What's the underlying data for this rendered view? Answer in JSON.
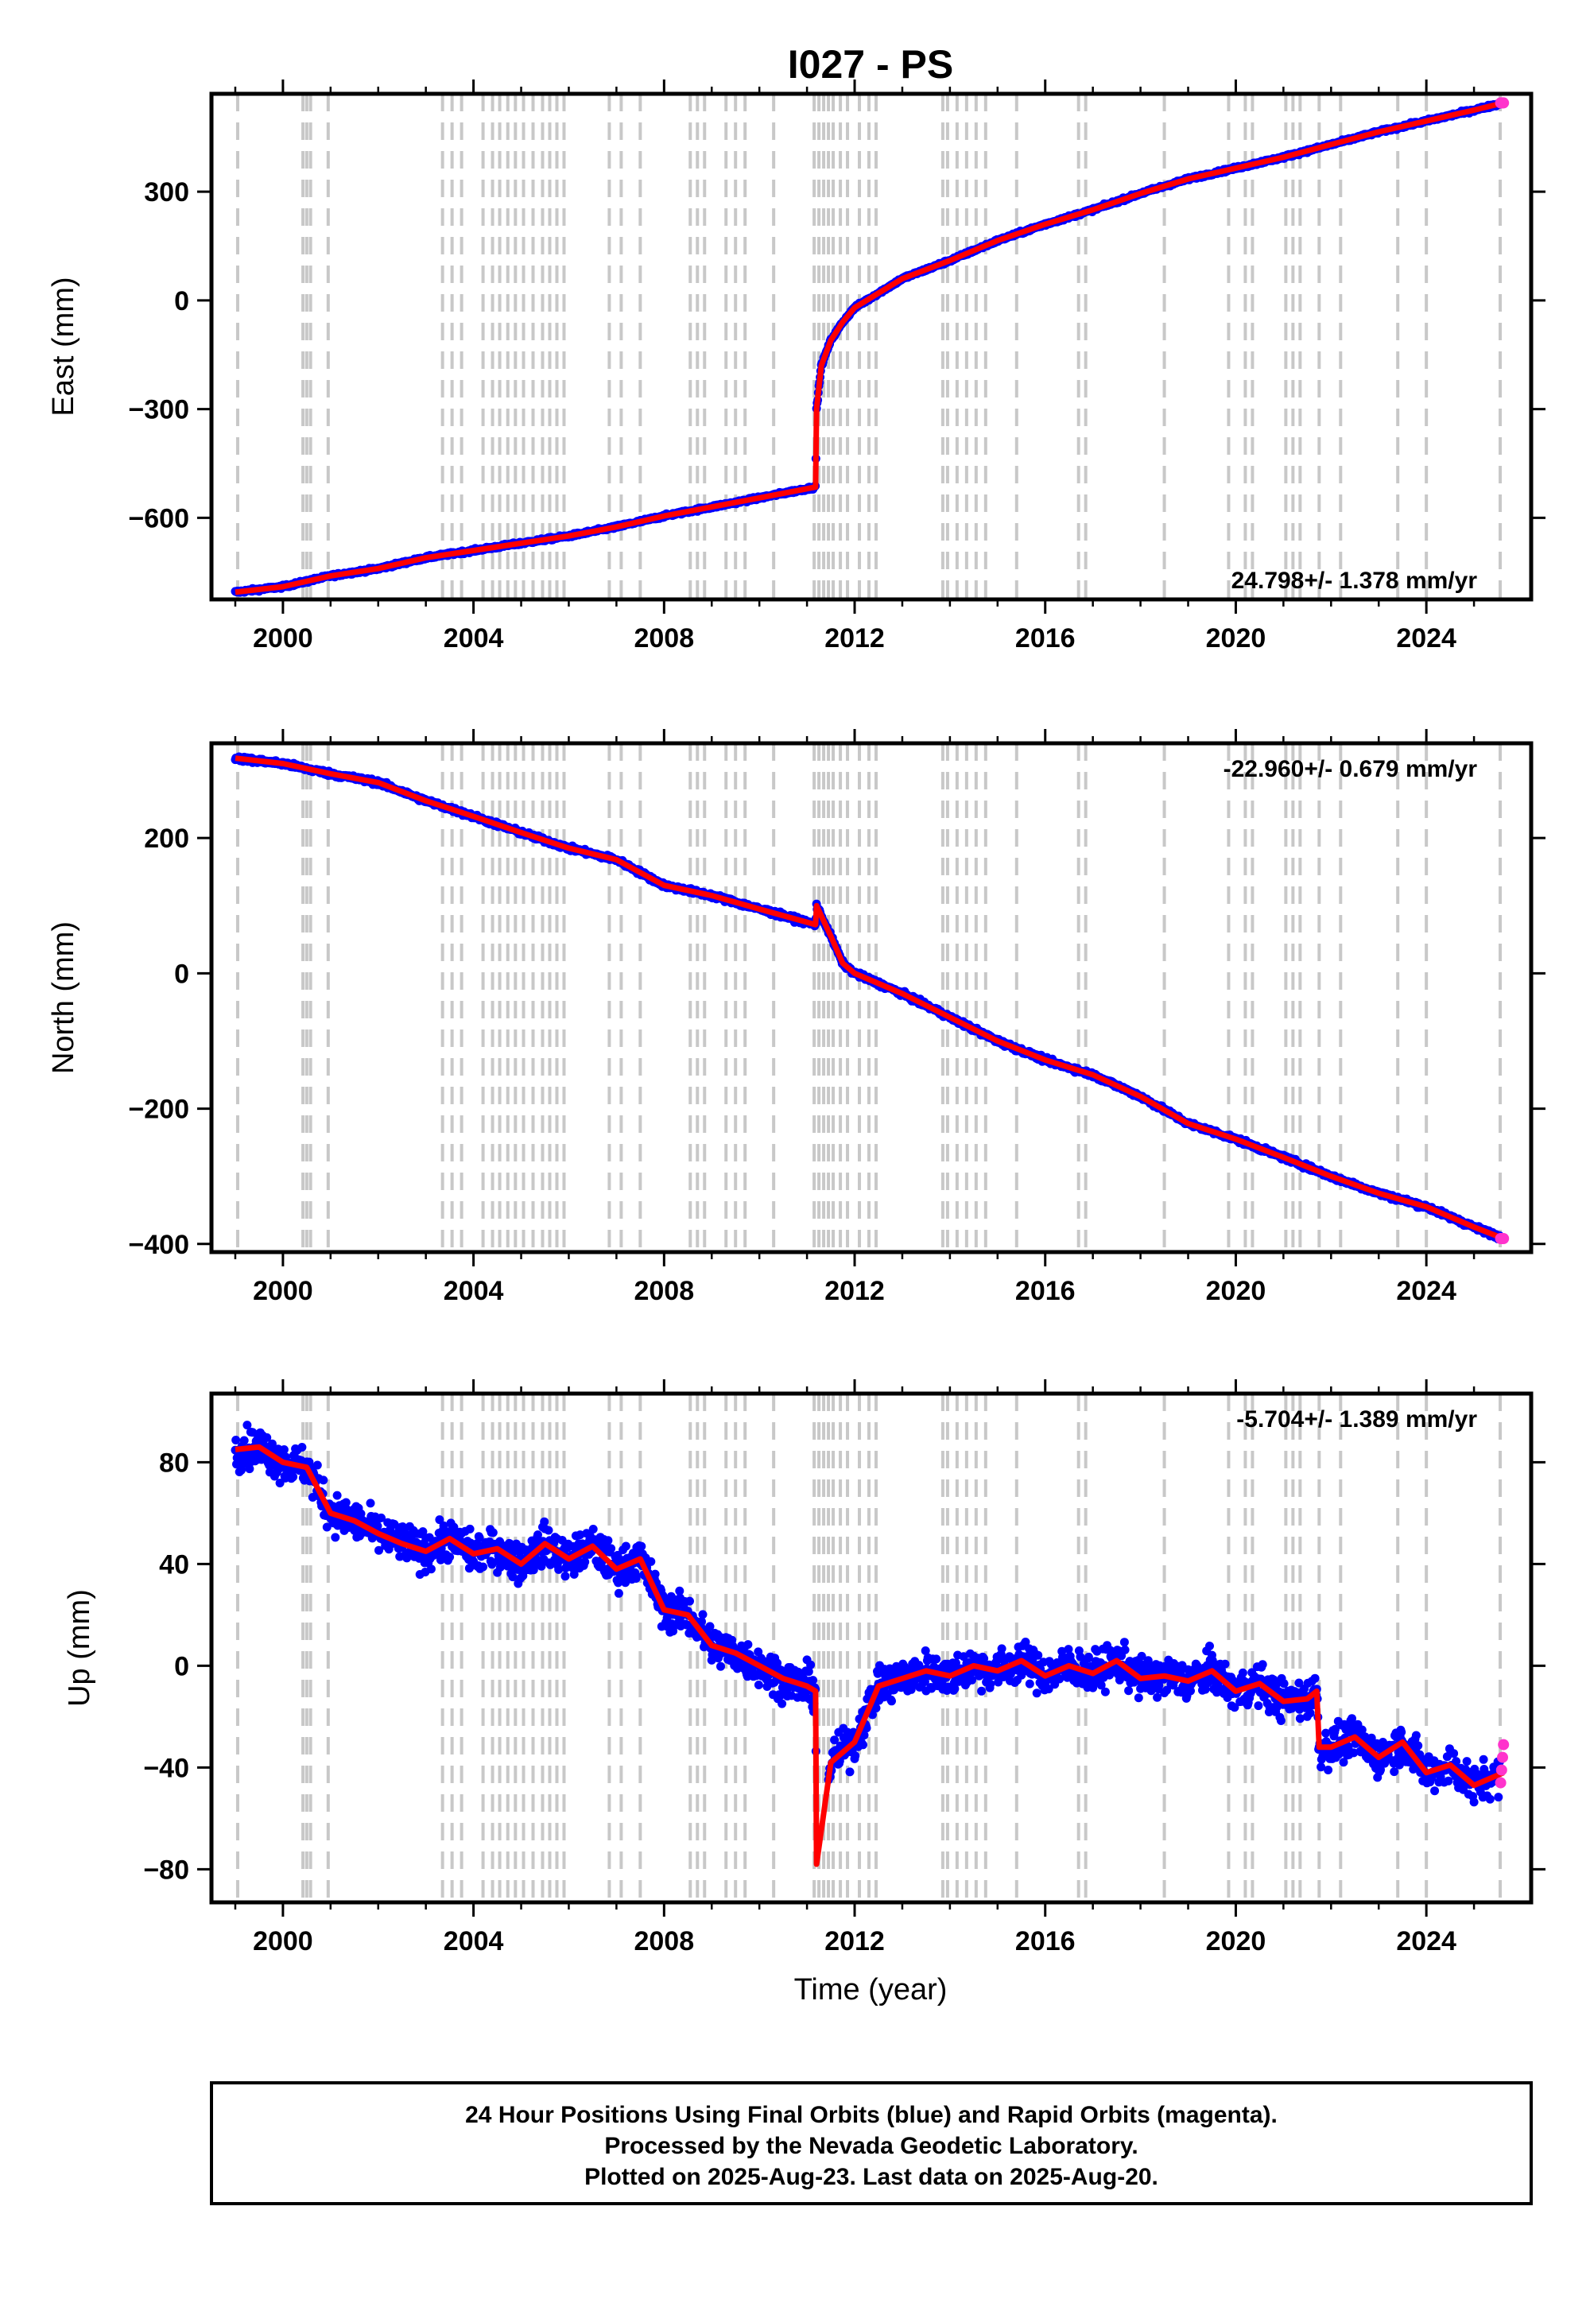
{
  "title": "I027 - PS",
  "xlabel": "Time (year)",
  "footer": {
    "line1": "24 Hour Positions Using Final Orbits (blue) and Rapid Orbits (magenta).",
    "line2": "Processed by the Nevada Geodetic Laboratory.",
    "line3": "Plotted on 2025-Aug-23. Last data on 2025-Aug-20."
  },
  "colors": {
    "final": "#0000ff",
    "rapid": "#ff33cc",
    "model": "#ff0000",
    "grid": "#c8c8c8"
  },
  "chart_data": [
    {
      "type": "scatter",
      "ylabel": "East (mm)",
      "rate_label": "24.798+/- 1.378 mm/yr",
      "rate_position": "bottom-right",
      "xlim": [
        1998.5,
        2026.2
      ],
      "ylim": [
        -825,
        570
      ],
      "xticks": [
        2000,
        2004,
        2008,
        2012,
        2016,
        2020,
        2024
      ],
      "yticks": [
        -600,
        -300,
        0,
        300
      ],
      "ytick_labels": [
        "−600",
        "−300",
        "0",
        "300"
      ],
      "steps": [
        1999.05,
        2000.42,
        2000.5,
        2000.58,
        2000.95,
        2003.35,
        2003.55,
        2003.75,
        2004.2,
        2004.4,
        2004.55,
        2004.72,
        2004.88,
        2005.05,
        2005.25,
        2005.45,
        2005.6,
        2005.75,
        2005.9,
        2006.85,
        2007.1,
        2007.5,
        2008.55,
        2008.7,
        2008.85,
        2009.3,
        2009.5,
        2009.7,
        2010.3,
        2011.15,
        2011.25,
        2011.35,
        2011.45,
        2011.55,
        2011.7,
        2011.85,
        2012.1,
        2012.3,
        2012.45,
        2013.85,
        2013.95,
        2014.15,
        2014.35,
        2014.55,
        2014.75,
        2015.4,
        2016.7,
        2016.85,
        2018.5,
        2019.85,
        2020.2,
        2020.35,
        2021.05,
        2021.2,
        2021.35,
        2021.75,
        2022.2,
        2023.4,
        2024.0,
        2025.55
      ],
      "series": [
        {
          "x": [
            1999.0,
            2000.0,
            2001.0,
            2002.0,
            2003.0,
            2004.0,
            2005.0,
            2006.0,
            2007.0,
            2008.0,
            2009.0,
            2010.0,
            2011.18,
            2011.2,
            2011.3,
            2011.5,
            2011.75,
            2012.0,
            2012.5,
            2013.0,
            2014.0,
            2015.0,
            2016.0,
            2017.0,
            2018.0,
            2019.0,
            2020.0,
            2021.0,
            2022.0,
            2023.0,
            2024.0,
            2025.0,
            2025.62
          ],
          "y": [
            -805,
            -790,
            -760,
            -740,
            -710,
            -690,
            -670,
            -650,
            -625,
            -595,
            -570,
            -545,
            -515,
            -300,
            -180,
            -110,
            -60,
            -20,
            20,
            60,
            110,
            165,
            210,
            250,
            295,
            335,
            365,
            395,
            430,
            465,
            495,
            525,
            545
          ]
        }
      ]
    },
    {
      "type": "scatter",
      "ylabel": "North (mm)",
      "rate_label": "-22.960+/- 0.679 mm/yr",
      "rate_position": "top-right",
      "xlim": [
        1998.5,
        2026.2
      ],
      "ylim": [
        -412,
        340
      ],
      "xticks": [
        2000,
        2004,
        2008,
        2012,
        2016,
        2020,
        2024
      ],
      "yticks": [
        -400,
        -200,
        0,
        200
      ],
      "ytick_labels": [
        "−400",
        "−200",
        "0",
        "200"
      ],
      "steps": [
        1999.05,
        2000.42,
        2000.5,
        2000.58,
        2000.95,
        2003.35,
        2003.55,
        2003.75,
        2004.2,
        2004.4,
        2004.55,
        2004.72,
        2004.88,
        2005.05,
        2005.25,
        2005.45,
        2005.6,
        2005.75,
        2005.9,
        2006.85,
        2007.1,
        2007.5,
        2008.55,
        2008.7,
        2008.85,
        2009.3,
        2009.5,
        2009.7,
        2010.3,
        2011.15,
        2011.25,
        2011.35,
        2011.45,
        2011.55,
        2011.7,
        2011.85,
        2012.1,
        2012.3,
        2012.45,
        2013.85,
        2013.95,
        2014.15,
        2014.35,
        2014.55,
        2014.75,
        2015.4,
        2016.7,
        2016.85,
        2018.5,
        2019.85,
        2020.2,
        2020.35,
        2021.05,
        2021.2,
        2021.35,
        2021.75,
        2022.2,
        2023.4,
        2024.0,
        2025.55
      ],
      "series": [
        {
          "x": [
            1999.0,
            2000.0,
            2001.0,
            2002.0,
            2003.0,
            2004.0,
            2005.0,
            2006.0,
            2007.0,
            2008.0,
            2009.0,
            2010.0,
            2011.18,
            2011.2,
            2011.5,
            2011.75,
            2012.0,
            2013.0,
            2014.0,
            2015.0,
            2016.0,
            2017.0,
            2018.0,
            2019.0,
            2020.0,
            2021.0,
            2022.0,
            2023.0,
            2024.0,
            2025.0,
            2025.62
          ],
          "y": [
            318,
            310,
            295,
            282,
            255,
            232,
            208,
            185,
            168,
            130,
            115,
            95,
            72,
            100,
            55,
            15,
            0,
            -30,
            -65,
            -100,
            -128,
            -150,
            -182,
            -222,
            -245,
            -272,
            -300,
            -325,
            -345,
            -375,
            -392
          ]
        }
      ]
    },
    {
      "type": "scatter",
      "ylabel": "Up (mm)",
      "rate_label": "-5.704+/- 1.389 mm/yr",
      "rate_position": "top-right",
      "xlim": [
        1998.5,
        2026.2
      ],
      "ylim": [
        -93,
        107
      ],
      "xticks": [
        2000,
        2004,
        2008,
        2012,
        2016,
        2020,
        2024
      ],
      "yticks": [
        -80,
        -40,
        0,
        40,
        80
      ],
      "ytick_labels": [
        "−80",
        "−40",
        "0",
        "40",
        "80"
      ],
      "steps": [
        1999.05,
        2000.42,
        2000.5,
        2000.58,
        2000.95,
        2003.35,
        2003.55,
        2003.75,
        2004.2,
        2004.4,
        2004.55,
        2004.72,
        2004.88,
        2005.05,
        2005.25,
        2005.45,
        2005.6,
        2005.75,
        2005.9,
        2006.85,
        2007.1,
        2007.5,
        2008.55,
        2008.7,
        2008.85,
        2009.3,
        2009.5,
        2009.7,
        2010.3,
        2011.15,
        2011.25,
        2011.35,
        2011.45,
        2011.55,
        2011.7,
        2011.85,
        2012.1,
        2012.3,
        2012.45,
        2013.85,
        2013.95,
        2014.15,
        2014.35,
        2014.55,
        2014.75,
        2015.4,
        2016.7,
        2016.85,
        2018.5,
        2019.85,
        2020.2,
        2020.35,
        2021.05,
        2021.2,
        2021.35,
        2021.75,
        2022.2,
        2023.4,
        2024.0,
        2025.55
      ],
      "series": [
        {
          "x": [
            1999.0,
            1999.5,
            2000.0,
            2000.5,
            2001.0,
            2001.5,
            2002.0,
            2002.5,
            2003.0,
            2003.5,
            2004.0,
            2004.5,
            2005.0,
            2005.5,
            2006.0,
            2006.5,
            2007.0,
            2007.5,
            2008.0,
            2008.5,
            2009.0,
            2009.5,
            2010.0,
            2010.5,
            2011.0,
            2011.18,
            2011.2,
            2011.5,
            2012.0,
            2012.5,
            2013.0,
            2013.5,
            2014.0,
            2014.5,
            2015.0,
            2015.5,
            2016.0,
            2016.5,
            2017.0,
            2017.5,
            2018.0,
            2018.5,
            2019.0,
            2019.5,
            2020.0,
            2020.5,
            2021.0,
            2021.5,
            2021.7,
            2021.75,
            2022.0,
            2022.5,
            2023.0,
            2023.5,
            2024.0,
            2024.5,
            2025.0,
            2025.62
          ],
          "y": [
            85,
            86,
            80,
            78,
            60,
            57,
            52,
            48,
            45,
            50,
            44,
            46,
            40,
            48,
            42,
            47,
            38,
            42,
            22,
            20,
            8,
            5,
            0,
            -5,
            -8,
            -10,
            -78,
            -38,
            -30,
            -8,
            -5,
            -2,
            -4,
            0,
            -2,
            2,
            -4,
            0,
            -3,
            2,
            -5,
            -4,
            -6,
            -2,
            -10,
            -7,
            -14,
            -13,
            -10,
            -32,
            -32,
            -28,
            -36,
            -30,
            -42,
            -39,
            -47,
            -42
          ]
        }
      ]
    }
  ]
}
